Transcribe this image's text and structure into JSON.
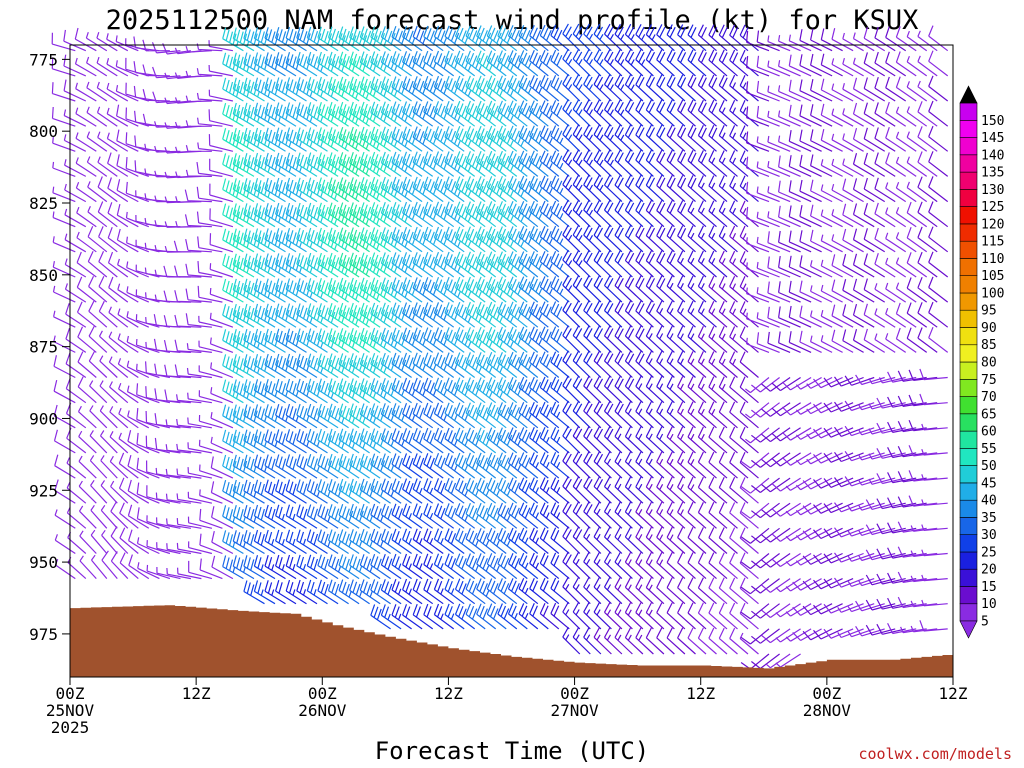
{
  "chart_data": {
    "type": "wind_barb_time_height",
    "title": "2025112500 NAM forecast wind profile (kt) for KSUX",
    "xlabel": "Forecast Time (UTC)",
    "ylabel": "",
    "y_axis": {
      "ticks": [
        775,
        800,
        825,
        850,
        875,
        900,
        925,
        950,
        975
      ],
      "range": [
        770,
        990
      ],
      "inverted": true
    },
    "x_axis": {
      "range_hours": [
        0,
        84
      ],
      "ticks": [
        {
          "hour": 0,
          "labels": [
            "00Z",
            "25NOV",
            "2025"
          ]
        },
        {
          "hour": 12,
          "labels": [
            "12Z"
          ]
        },
        {
          "hour": 24,
          "labels": [
            "00Z",
            "26NOV"
          ]
        },
        {
          "hour": 36,
          "labels": [
            "12Z"
          ]
        },
        {
          "hour": 48,
          "labels": [
            "00Z",
            "27NOV"
          ]
        },
        {
          "hour": 60,
          "labels": [
            "12Z"
          ]
        },
        {
          "hour": 72,
          "labels": [
            "00Z",
            "28NOV"
          ]
        },
        {
          "hour": 84,
          "labels": [
            "12Z"
          ]
        }
      ]
    },
    "colorbar": {
      "units": "kt",
      "levels": [
        5,
        10,
        15,
        20,
        25,
        30,
        35,
        40,
        45,
        50,
        55,
        60,
        65,
        70,
        75,
        80,
        85,
        90,
        95,
        100,
        105,
        110,
        115,
        120,
        125,
        130,
        135,
        140,
        145,
        150
      ],
      "colors": [
        "#8a2be2",
        "#6a0dcf",
        "#3a10d8",
        "#1a20e0",
        "#1040e8",
        "#1866e8",
        "#1a8ae8",
        "#20aee8",
        "#20cdd8",
        "#20e6c0",
        "#20e6a0",
        "#28e060",
        "#40e030",
        "#80e820",
        "#c8f020",
        "#f0f020",
        "#f0e010",
        "#f0c000",
        "#f09800",
        "#f08000",
        "#f07000",
        "#f05000",
        "#f02c00",
        "#f01000",
        "#f00040",
        "#f00070",
        "#f000a0",
        "#f000d0",
        "#f000f0",
        "#c800f0"
      ],
      "under_color": "#8a2be2",
      "over_color": "#000000"
    },
    "terrain": {
      "color": "#a0522d",
      "surface_pressure": [
        [
          0,
          966
        ],
        [
          9,
          965
        ],
        [
          16,
          967
        ],
        [
          21,
          968
        ],
        [
          25,
          972
        ],
        [
          30,
          976
        ],
        [
          36,
          980
        ],
        [
          42,
          983
        ],
        [
          48,
          985
        ],
        [
          54,
          986
        ],
        [
          60,
          986
        ],
        [
          66,
          987
        ],
        [
          72,
          984
        ],
        [
          78,
          984
        ],
        [
          84,
          982
        ]
      ]
    },
    "wind_regimes": [
      {
        "hours": [
          0,
          16
        ],
        "note": "light 5-10 kt, westerly to northwesterly"
      },
      {
        "hours": [
          16,
          48
        ],
        "note": "strong 35-55 kt west-northwesterly jet, peak near 800-875 hPa around 00Z-12Z 26NOV"
      },
      {
        "hours": [
          48,
          66
        ],
        "note": "moderate 20-30 kt northwesterly, weakening below 900 hPa"
      },
      {
        "hours": [
          66,
          84
        ],
        "note": "light 5-15 kt, backing to southwesterly in lower levels"
      }
    ]
  },
  "credit": "coolwx.com/models"
}
